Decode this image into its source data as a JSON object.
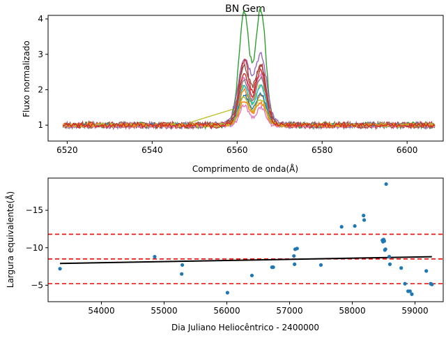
{
  "chart_data": [
    {
      "type": "line",
      "title": "BN Gem",
      "xlabel": "Comprimento de onda(Å)",
      "ylabel": "Fluxo normalizado",
      "xlim": [
        6515.5,
        6608.5
      ],
      "ylim": [
        0.55,
        4.1
      ],
      "xticks": [
        6520,
        6540,
        6560,
        6580,
        6600
      ],
      "yticks": [
        1,
        2,
        3,
        4
      ],
      "note_series": "many overlapping normalized spectra around H-alpha with double-peaked emission",
      "series": [
        {
          "color": "#2ca02c",
          "peak1": 3.78,
          "peak2": 3.92,
          "cont": 1.0,
          "w": 1.0
        },
        {
          "color": "#9467bd",
          "peak1": 2.65,
          "peak2": 2.72,
          "cont": 1.0,
          "w": 1.2
        },
        {
          "color": "#d62728",
          "peak1": 2.62,
          "peak2": 2.55,
          "cont": 1.0,
          "w": 1.0
        },
        {
          "color": "#8c564b",
          "peak1": 2.45,
          "peak2": 2.5,
          "cont": 1.0,
          "w": 1.1
        },
        {
          "color": "#e377c2",
          "peak1": 2.2,
          "peak2": 2.3,
          "cont": 1.0,
          "w": 1.0
        },
        {
          "color": "#7f7f7f",
          "peak1": 2.1,
          "peak2": 2.2,
          "cont": 1.0,
          "w": 1.0
        },
        {
          "color": "#bcbd22",
          "peak1": 2.0,
          "peak2": 2.05,
          "cont": 1.0,
          "w": 1.0
        },
        {
          "color": "#17becf",
          "peak1": 1.95,
          "peak2": 2.0,
          "cont": 1.0,
          "w": 1.0
        },
        {
          "color": "#ff7f0e",
          "peak1": 1.9,
          "peak2": 1.75,
          "cont": 1.0,
          "w": 0.9
        },
        {
          "color": "#1f77b4",
          "peak1": 1.75,
          "peak2": 1.8,
          "cont": 1.0,
          "w": 1.0
        },
        {
          "color": "#e377c2",
          "peak1": 1.5,
          "peak2": 1.45,
          "cont": 0.98,
          "w": 0.9
        },
        {
          "color": "#ff7f0e",
          "peak1": 1.6,
          "peak2": 1.55,
          "cont": 1.0,
          "w": 1.0
        },
        {
          "color": "#bcbd22",
          "peak1": 1.7,
          "peak2": 1.65,
          "cont": 1.0,
          "w": 1.0
        },
        {
          "color": "#d62728",
          "peak1": 2.3,
          "peak2": 2.4,
          "cont": 1.0,
          "w": 1.0
        }
      ],
      "gap_line": {
        "color": "#bcbd22",
        "x": [
          6549,
          6559
        ],
        "y": [
          1.08,
          1.45
        ]
      }
    },
    {
      "type": "scatter",
      "xlabel": "Dia Juliano Heliocêntrico - 2400000",
      "ylabel": "Largura equivalente(Å)",
      "xlim": [
        53150,
        59450
      ],
      "ylim": [
        -2.8,
        -19.3
      ],
      "inverted_y": true,
      "xticks": [
        54000,
        55000,
        56000,
        57000,
        58000,
        59000
      ],
      "yticks": [
        -5,
        -10,
        -15
      ],
      "ytick_labels": [
        "−5",
        "−10",
        "−15"
      ],
      "xtick_labels": [
        "54000",
        "55000",
        "56000",
        "57000",
        "58000",
        "59000"
      ],
      "points": [
        [
          53340,
          -7.2
        ],
        [
          54850,
          -8.8
        ],
        [
          55280,
          -6.5
        ],
        [
          55290,
          -7.7
        ],
        [
          56010,
          -4.0
        ],
        [
          56400,
          -6.3
        ],
        [
          56720,
          -7.4
        ],
        [
          56740,
          -7.4
        ],
        [
          57080,
          -7.8
        ],
        [
          57070,
          -8.9
        ],
        [
          57090,
          -9.8
        ],
        [
          57120,
          -9.9
        ],
        [
          57500,
          -7.7
        ],
        [
          57830,
          -12.8
        ],
        [
          58040,
          -12.9
        ],
        [
          58180,
          -14.3
        ],
        [
          58190,
          -13.7
        ],
        [
          58480,
          -11.0
        ],
        [
          58490,
          -10.8
        ],
        [
          58500,
          -11.1
        ],
        [
          58510,
          -10.9
        ],
        [
          58520,
          -9.7
        ],
        [
          58530,
          -9.8
        ],
        [
          58540,
          -18.5
        ],
        [
          58590,
          -8.8
        ],
        [
          58600,
          -7.8
        ],
        [
          58780,
          -7.3
        ],
        [
          58840,
          -5.2
        ],
        [
          58890,
          -4.2
        ],
        [
          58920,
          -4.2
        ],
        [
          58950,
          -3.8
        ],
        [
          59180,
          -6.9
        ],
        [
          59250,
          -5.2
        ],
        [
          59270,
          -5.1
        ]
      ],
      "trend": {
        "x": [
          53340,
          59270
        ],
        "y": [
          -7.9,
          -8.8
        ]
      },
      "hlines": [
        -11.8,
        -8.5,
        -5.2
      ],
      "point_color": "#1f77b4",
      "trend_color": "#000000",
      "hline_color": "#ff0000"
    }
  ]
}
